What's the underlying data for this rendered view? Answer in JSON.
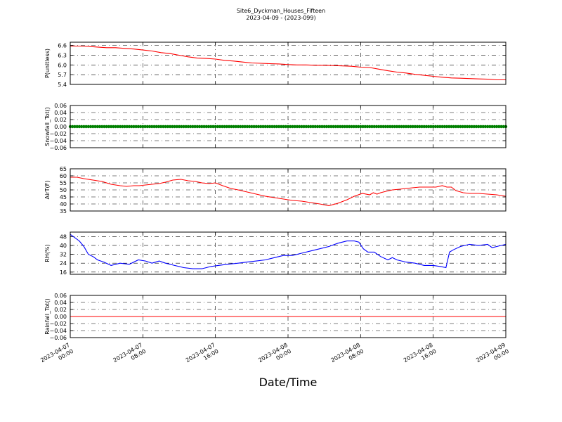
{
  "chart_data": {
    "title": "Site6_Dyckman_Houses_Fifteen",
    "subtitle": "2023-04-09 - (2023-099)",
    "xlabel": "Date/Time",
    "x_ticks": [
      [
        "2023-04-07",
        "00:00"
      ],
      [
        "2023-04-07",
        "08:00"
      ],
      [
        "2023-04-07",
        "16:00"
      ],
      [
        "2023-04-08",
        "00:00"
      ],
      [
        "2023-04-08",
        "08:00"
      ],
      [
        "2023-04-08",
        "16:00"
      ],
      [
        "2023-04-09",
        "00:00"
      ]
    ],
    "x_range_hours": [
      0,
      48
    ],
    "grid": true,
    "panels": [
      {
        "type": "line",
        "ylabel": "P(unitless)",
        "ylim": [
          5.4,
          6.7
        ],
        "yticks": [
          5.4,
          5.7,
          6.0,
          6.3,
          6.6
        ],
        "ytick_labels": [
          "5.4",
          "5.7",
          "6.0",
          "6.3",
          "6.6"
        ],
        "color": "#ff0000",
        "series": [
          {
            "x": [
              0,
              1,
              2,
              3,
              4,
              5,
              6,
              7,
              8,
              9,
              10,
              11,
              12,
              13,
              14,
              15,
              16,
              17,
              18,
              19,
              20,
              21,
              22,
              23,
              24,
              25,
              26,
              27,
              28,
              29,
              30,
              31,
              32,
              33,
              34,
              35,
              36,
              37,
              38,
              39,
              40,
              41,
              42,
              43,
              44,
              45,
              46,
              47,
              48
            ],
            "values": [
              6.58,
              6.58,
              6.57,
              6.55,
              6.53,
              6.53,
              6.51,
              6.49,
              6.46,
              6.43,
              6.38,
              6.35,
              6.3,
              6.25,
              6.21,
              6.2,
              6.18,
              6.14,
              6.12,
              6.09,
              6.06,
              6.05,
              6.04,
              6.03,
              6.01,
              6.0,
              6.0,
              5.99,
              5.99,
              5.98,
              5.97,
              5.96,
              5.93,
              5.92,
              5.87,
              5.82,
              5.78,
              5.75,
              5.71,
              5.68,
              5.65,
              5.62,
              5.6,
              5.59,
              5.58,
              5.57,
              5.56,
              5.54,
              5.54
            ]
          }
        ]
      },
      {
        "type": "scatter",
        "ylabel": "Snowfall_Tot()",
        "ylim": [
          -0.06,
          0.06
        ],
        "yticks": [
          -0.06,
          -0.04,
          -0.02,
          0.0,
          0.02,
          0.04,
          0.06
        ],
        "ytick_labels": [
          "−0.06",
          "−0.04",
          "−0.02",
          "0.00",
          "0.02",
          "0.04",
          "0.06"
        ],
        "color": "#008000",
        "series": [
          {
            "x_start": 0,
            "x_end": 48,
            "x_step": 0.25,
            "value": 0.0
          }
        ]
      },
      {
        "type": "line",
        "ylabel": "AirT(F)",
        "ylim": [
          35,
          65
        ],
        "yticks": [
          35,
          40,
          45,
          50,
          55,
          60,
          65
        ],
        "ytick_labels": [
          "35",
          "40",
          "45",
          "50",
          "55",
          "60",
          "65"
        ],
        "color": "#ff0000",
        "series": [
          {
            "x": [
              0,
              0.75,
              1.5,
              2.5,
              3.5,
              4.5,
              5.5,
              6.2,
              7,
              7.6,
              8.3,
              9,
              9.8,
              10.5,
              11.3,
              12.2,
              13,
              13.8,
              14.5,
              15.3,
              16,
              16.8,
              17.7,
              18.5,
              19.5,
              20.5,
              21.5,
              22.5,
              23.5,
              24.5,
              25.5,
              26.5,
              27.5,
              28.5,
              29.5,
              30.5,
              31.3,
              32.2,
              33,
              33.4,
              33.8,
              34.2,
              34.8,
              35.5,
              36.3,
              37,
              37.7,
              38.5,
              39.5,
              40.3,
              41,
              41.5,
              42,
              42.5,
              43.3,
              44,
              45,
              46,
              47,
              48
            ],
            "values": [
              59,
              59,
              58,
              57,
              56,
              54,
              53,
              52.5,
              53,
              53,
              53.5,
              54,
              54.5,
              55.5,
              57,
              57.5,
              56.5,
              56,
              55,
              54.5,
              55,
              53,
              51,
              50,
              48.5,
              47,
              45.5,
              44.5,
              43.5,
              42.5,
              42,
              41,
              40,
              38.8,
              40.5,
              43,
              45.5,
              47.5,
              46.5,
              48,
              47,
              48,
              49,
              50,
              50.5,
              51,
              51.5,
              52,
              52,
              52,
              53,
              52,
              52,
              49.5,
              48,
              47.5,
              47.5,
              47,
              46.5,
              45.5
            ]
          }
        ]
      },
      {
        "type": "line",
        "ylabel": "RH(%)",
        "ylim": [
          14,
          52
        ],
        "yticks": [
          16,
          24,
          32,
          40,
          48
        ],
        "ytick_labels": [
          "16",
          "24",
          "32",
          "40",
          "48"
        ],
        "color": "#0000ff",
        "series": [
          {
            "x": [
              0,
              0.5,
              1,
              1.5,
              2,
              2.5,
              3,
              3.7,
              4.5,
              5.5,
              6.5,
              7.5,
              8.3,
              9,
              9.8,
              10.5,
              11.5,
              12.5,
              13.5,
              14.5,
              15.5,
              16.3,
              17.3,
              18.5,
              19.5,
              20.5,
              21.5,
              22.5,
              23.5,
              24.5,
              25.5,
              26.5,
              27.5,
              28.5,
              29.5,
              30.5,
              31.3,
              31.8,
              32.3,
              32.8,
              33.5,
              34.2,
              35,
              35.5,
              36,
              37,
              38,
              39,
              40,
              40.8,
              41.4,
              41.8,
              42.2,
              43,
              44,
              45,
              46,
              46.5,
              47,
              48
            ],
            "values": [
              50,
              47,
              44,
              39,
              32,
              30,
              27,
              25,
              22,
              24,
              23,
              27,
              26,
              24,
              26,
              24,
              22,
              20,
              19,
              19,
              21,
              22,
              23,
              24,
              25,
              26,
              27,
              29,
              31,
              31,
              33,
              35,
              37,
              39,
              42,
              44,
              44,
              43,
              37,
              34,
              34,
              30,
              27,
              29,
              27,
              25,
              24,
              22,
              22,
              21,
              20,
              34,
              36,
              39,
              41,
              40,
              41,
              38,
              39,
              41
            ]
          }
        ]
      },
      {
        "type": "line",
        "ylabel": "Rainfall_Tot()",
        "ylim": [
          -0.06,
          0.06
        ],
        "yticks": [
          -0.06,
          -0.04,
          -0.02,
          0.0,
          0.02,
          0.04,
          0.06
        ],
        "ytick_labels": [
          "−0.06",
          "−0.04",
          "−0.02",
          "0.00",
          "0.02",
          "0.04",
          "0.06"
        ],
        "color": "#ff0000",
        "series": [
          {
            "x": [
              0,
              48
            ],
            "values": [
              0.0,
              0.0
            ]
          }
        ]
      }
    ]
  }
}
